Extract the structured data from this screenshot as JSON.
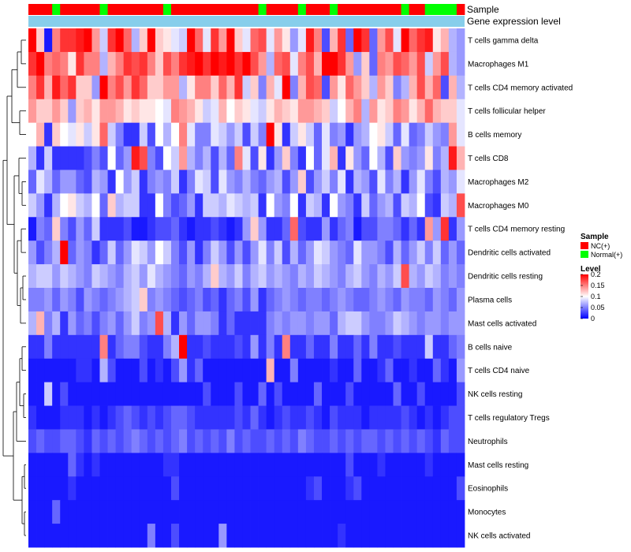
{
  "chart_data": {
    "type": "heatmap",
    "annotation_tracks": [
      "Sample",
      "Gene expression level"
    ],
    "rows": [
      "T cells gamma delta",
      "Macrophages M1",
      "T cells CD4 memory activated",
      "T cells follicular helper",
      "B cells memory",
      "T cells CD8",
      "Macrophages M2",
      "Macrophages M0",
      "T cells CD4 memory resting",
      "Dendritic cells activated",
      "Dendritic cells resting",
      "Plasma cells",
      "Mast cells activated",
      "B cells naive",
      "T cells CD4 naive",
      "NK cells resting",
      "T cells regulatory  Tregs",
      "Neutrophils",
      "Mast cells resting",
      "Eosinophils",
      "Monocytes",
      "NK cells activated"
    ],
    "sample_groups": [
      "NC",
      "NC",
      "NC",
      "Normal",
      "NC",
      "NC",
      "NC",
      "NC",
      "NC",
      "Normal",
      "NC",
      "NC",
      "NC",
      "NC",
      "NC",
      "NC",
      "NC",
      "Normal",
      "NC",
      "NC",
      "NC",
      "NC",
      "NC",
      "NC",
      "NC",
      "NC",
      "NC",
      "NC",
      "NC",
      "Normal",
      "NC",
      "NC",
      "NC",
      "NC",
      "Normal",
      "NC",
      "NC",
      "NC",
      "Normal",
      "NC",
      "NC",
      "NC",
      "NC",
      "NC",
      "NC",
      "NC",
      "NC",
      "Normal",
      "NC",
      "NC",
      "Normal",
      "Normal",
      "Normal",
      "Normal",
      "NC"
    ],
    "values": [
      [
        0.22,
        0.12,
        0.01,
        0.15,
        0.18,
        0.18,
        0.19,
        0.21,
        0.14,
        0.08,
        0.18,
        0.2,
        0.16,
        0.07,
        0.12,
        0.21,
        0.12,
        0.11,
        0.09,
        0.08,
        0.21,
        0.16,
        0.09,
        0.18,
        0.14,
        0.2,
        0.12,
        0.09,
        0.16,
        0.17,
        0.09,
        0.14,
        0.11,
        0.06,
        0.09,
        0.19,
        0.15,
        0.03,
        0.13,
        0.18,
        0.04,
        0.2,
        0.18,
        0.04,
        0.14,
        0.17,
        0.09,
        0.21,
        0.16,
        0.18,
        0.19,
        0.11,
        0.13,
        0.07,
        0.06
      ],
      [
        0.18,
        0.2,
        0.15,
        0.16,
        0.15,
        0.11,
        0.18,
        0.15,
        0.15,
        0.07,
        0.13,
        0.15,
        0.18,
        0.17,
        0.18,
        0.15,
        0.12,
        0.17,
        0.15,
        0.18,
        0.19,
        0.2,
        0.18,
        0.22,
        0.19,
        0.2,
        0.18,
        0.21,
        0.17,
        0.14,
        0.07,
        0.16,
        0.17,
        0.09,
        0.15,
        0.17,
        0.13,
        0.2,
        0.21,
        0.18,
        0.14,
        0.06,
        0.12,
        0.04,
        0.15,
        0.14,
        0.17,
        0.16,
        0.14,
        0.17,
        0.08,
        0.14,
        0.17,
        0.07,
        0.06
      ],
      [
        0.15,
        0.18,
        0.13,
        0.19,
        0.16,
        0.18,
        0.12,
        0.12,
        0.06,
        0.2,
        0.15,
        0.17,
        0.14,
        0.18,
        0.16,
        0.12,
        0.12,
        0.14,
        0.14,
        0.07,
        0.11,
        0.15,
        0.15,
        0.12,
        0.16,
        0.13,
        0.18,
        0.08,
        0.12,
        0.05,
        0.13,
        0.09,
        0.21,
        0.05,
        0.13,
        0.17,
        0.16,
        0.03,
        0.14,
        0.11,
        0.16,
        0.14,
        0.12,
        0.07,
        0.14,
        0.12,
        0.05,
        0.07,
        0.13,
        0.17,
        0.13,
        0.16,
        0.03,
        0.13,
        0.07
      ],
      [
        0.14,
        0.12,
        0.12,
        0.14,
        0.12,
        0.06,
        0.12,
        0.13,
        0.11,
        0.14,
        0.14,
        0.13,
        0.11,
        0.12,
        0.11,
        0.11,
        0.1,
        0.09,
        0.15,
        0.14,
        0.13,
        0.11,
        0.08,
        0.09,
        0.13,
        0.1,
        0.12,
        0.11,
        0.09,
        0.08,
        0.11,
        0.13,
        0.12,
        0.11,
        0.14,
        0.14,
        0.13,
        0.12,
        0.08,
        0.1,
        0.13,
        0.15,
        0.07,
        0.14,
        0.11,
        0.12,
        0.15,
        0.14,
        0.11,
        0.13,
        0.16,
        0.13,
        0.12,
        0.12,
        0.09
      ],
      [
        0.1,
        0.13,
        0.02,
        0.12,
        0.1,
        0.09,
        0.11,
        0.08,
        0.11,
        0.16,
        0.08,
        0.05,
        0.02,
        0.02,
        0.08,
        0.03,
        0.1,
        0.07,
        0.1,
        0.15,
        0.09,
        0.05,
        0.05,
        0.09,
        0.08,
        0.06,
        0.08,
        0.03,
        0.08,
        0.05,
        0.22,
        0.11,
        0.02,
        0.08,
        0.11,
        0.08,
        0.04,
        0.09,
        0.05,
        0.06,
        0.02,
        0.06,
        0.07,
        0.1,
        0.11,
        0.08,
        0.04,
        0.09,
        0.04,
        0.05,
        0.08,
        0.06,
        0.05,
        0.14,
        0.09
      ],
      [
        0.07,
        0.02,
        0.08,
        0.02,
        0.02,
        0.02,
        0.02,
        0.03,
        0.05,
        0.03,
        0.1,
        0.04,
        0.06,
        0.19,
        0.17,
        0.05,
        0.03,
        0.1,
        0.08,
        0.14,
        0.07,
        0.05,
        0.07,
        0.03,
        0.07,
        0.04,
        0.15,
        0.09,
        0.03,
        0.11,
        0.02,
        0.06,
        0.12,
        0.05,
        0.02,
        0.1,
        0.04,
        0.09,
        0.13,
        0.02,
        0.11,
        0.06,
        0.04,
        0.1,
        0.07,
        0.03,
        0.12,
        0.06,
        0.05,
        0.06,
        0.11,
        0.05,
        0.07,
        0.19,
        0.13
      ],
      [
        0.04,
        0.09,
        0.07,
        0.04,
        0.06,
        0.06,
        0.04,
        0.03,
        0.07,
        0.06,
        0.02,
        0.1,
        0.06,
        0.08,
        0.02,
        0.05,
        0.06,
        0.05,
        0.08,
        0.02,
        0.05,
        0.09,
        0.08,
        0.03,
        0.09,
        0.06,
        0.05,
        0.07,
        0.05,
        0.04,
        0.06,
        0.07,
        0.03,
        0.06,
        0.12,
        0.03,
        0.06,
        0.08,
        0.05,
        0.09,
        0.02,
        0.07,
        0.06,
        0.03,
        0.09,
        0.05,
        0.07,
        0.02,
        0.06,
        0.09,
        0.05,
        0.03,
        0.07,
        0.06,
        0.09
      ],
      [
        0.08,
        0.06,
        0.02,
        0.07,
        0.1,
        0.11,
        0.08,
        0.07,
        0.1,
        0.04,
        0.12,
        0.07,
        0.08,
        0.08,
        0.02,
        0.02,
        0.1,
        0.05,
        0.03,
        0.04,
        0.06,
        0.02,
        0.08,
        0.08,
        0.07,
        0.09,
        0.08,
        0.07,
        0.08,
        0.02,
        0.1,
        0.06,
        0.05,
        0.1,
        0.02,
        0.08,
        0.07,
        0.02,
        0.1,
        0.06,
        0.05,
        0.02,
        0.08,
        0.04,
        0.06,
        0.07,
        0.03,
        0.08,
        0.07,
        0.1,
        0.03,
        0.02,
        0.08,
        0.07,
        0.17
      ],
      [
        0.01,
        0.05,
        0.04,
        0.12,
        0.05,
        0.03,
        0.06,
        0.04,
        0.08,
        0.02,
        0.02,
        0.02,
        0.03,
        0.01,
        0.01,
        0.02,
        0.03,
        0.03,
        0.04,
        0.02,
        0.01,
        0.02,
        0.02,
        0.03,
        0.02,
        0.01,
        0.02,
        0.06,
        0.12,
        0.06,
        0.02,
        0.02,
        0.04,
        0.16,
        0.03,
        0.02,
        0.02,
        0.06,
        0.02,
        0.04,
        0.05,
        0.01,
        0.03,
        0.03,
        0.05,
        0.05,
        0.04,
        0.02,
        0.04,
        0.02,
        0.14,
        0.06,
        0.18,
        0.02,
        0.06
      ],
      [
        0.06,
        0.03,
        0.05,
        0.07,
        0.21,
        0.04,
        0.06,
        0.05,
        0.02,
        0.04,
        0.08,
        0.04,
        0.06,
        0.09,
        0.08,
        0.06,
        0.1,
        0.08,
        0.05,
        0.03,
        0.06,
        0.02,
        0.05,
        0.08,
        0.06,
        0.03,
        0.06,
        0.03,
        0.06,
        0.09,
        0.05,
        0.08,
        0.03,
        0.07,
        0.04,
        0.06,
        0.09,
        0.08,
        0.06,
        0.05,
        0.04,
        0.09,
        0.06,
        0.06,
        0.05,
        0.03,
        0.07,
        0.04,
        0.06,
        0.08,
        0.05,
        0.08,
        0.04,
        0.06,
        0.04
      ],
      [
        0.07,
        0.08,
        0.08,
        0.06,
        0.08,
        0.07,
        0.06,
        0.05,
        0.08,
        0.07,
        0.06,
        0.05,
        0.07,
        0.08,
        0.06,
        0.09,
        0.07,
        0.06,
        0.05,
        0.04,
        0.06,
        0.05,
        0.07,
        0.12,
        0.07,
        0.06,
        0.08,
        0.05,
        0.07,
        0.08,
        0.06,
        0.07,
        0.06,
        0.05,
        0.07,
        0.06,
        0.08,
        0.07,
        0.06,
        0.05,
        0.07,
        0.08,
        0.06,
        0.05,
        0.07,
        0.06,
        0.08,
        0.17,
        0.07,
        0.06,
        0.08,
        0.07,
        0.05,
        0.06,
        0.05
      ],
      [
        0.05,
        0.05,
        0.06,
        0.04,
        0.06,
        0.05,
        0.03,
        0.06,
        0.05,
        0.04,
        0.05,
        0.06,
        0.07,
        0.08,
        0.12,
        0.05,
        0.06,
        0.05,
        0.04,
        0.03,
        0.04,
        0.05,
        0.03,
        0.04,
        0.02,
        0.04,
        0.05,
        0.03,
        0.06,
        0.02,
        0.04,
        0.05,
        0.06,
        0.05,
        0.04,
        0.05,
        0.05,
        0.04,
        0.05,
        0.06,
        0.05,
        0.04,
        0.04,
        0.05,
        0.06,
        0.05,
        0.04,
        0.06,
        0.05,
        0.05,
        0.04,
        0.06,
        0.05,
        0.04,
        0.06
      ],
      [
        0.07,
        0.13,
        0.05,
        0.07,
        0.02,
        0.06,
        0.04,
        0.05,
        0.03,
        0.05,
        0.06,
        0.04,
        0.06,
        0.08,
        0.05,
        0.06,
        0.17,
        0.07,
        0.02,
        0.06,
        0.04,
        0.06,
        0.06,
        0.05,
        0.02,
        0.04,
        0.02,
        0.02,
        0.02,
        0.02,
        0.05,
        0.06,
        0.05,
        0.06,
        0.06,
        0.05,
        0.06,
        0.06,
        0.04,
        0.07,
        0.08,
        0.08,
        0.06,
        0.05,
        0.05,
        0.06,
        0.08,
        0.07,
        0.06,
        0.05,
        0.06,
        0.06,
        0.05,
        0.06,
        0.06
      ],
      [
        0.02,
        0.02,
        0.05,
        0.02,
        0.02,
        0.02,
        0.02,
        0.02,
        0.02,
        0.15,
        0.02,
        0.04,
        0.05,
        0.05,
        0.03,
        0.02,
        0.02,
        0.05,
        0.07,
        0.22,
        0.02,
        0.02,
        0.03,
        0.02,
        0.02,
        0.02,
        0.03,
        0.02,
        0.06,
        0.02,
        0.05,
        0.02,
        0.15,
        0.02,
        0.02,
        0.04,
        0.02,
        0.02,
        0.05,
        0.02,
        0.02,
        0.04,
        0.02,
        0.05,
        0.02,
        0.02,
        0.03,
        0.02,
        0.02,
        0.02,
        0.08,
        0.02,
        0.02,
        0.04,
        0.05
      ],
      [
        0.01,
        0.01,
        0.01,
        0.01,
        0.01,
        0.01,
        0.02,
        0.02,
        0.01,
        0.07,
        0.03,
        0.01,
        0.01,
        0.01,
        0.03,
        0.01,
        0.02,
        0.01,
        0.03,
        0.06,
        0.02,
        0.04,
        0.01,
        0.01,
        0.01,
        0.01,
        0.01,
        0.01,
        0.01,
        0.01,
        0.13,
        0.01,
        0.01,
        0.05,
        0.01,
        0.01,
        0.01,
        0.01,
        0.02,
        0.01,
        0.01,
        0.04,
        0.01,
        0.01,
        0.02,
        0.04,
        0.01,
        0.01,
        0.02,
        0.01,
        0.01,
        0.04,
        0.02,
        0.01,
        0.06
      ],
      [
        0.01,
        0.01,
        0.08,
        0.01,
        0.03,
        0.01,
        0.01,
        0.01,
        0.01,
        0.01,
        0.01,
        0.01,
        0.01,
        0.01,
        0.01,
        0.01,
        0.01,
        0.01,
        0.01,
        0.01,
        0.01,
        0.01,
        0.03,
        0.01,
        0.01,
        0.01,
        0.03,
        0.01,
        0.01,
        0.04,
        0.01,
        0.03,
        0.01,
        0.01,
        0.01,
        0.01,
        0.04,
        0.01,
        0.01,
        0.01,
        0.03,
        0.01,
        0.01,
        0.01,
        0.01,
        0.01,
        0.04,
        0.01,
        0.01,
        0.03,
        0.01,
        0.01,
        0.01,
        0.01,
        0.03
      ],
      [
        0.02,
        0.01,
        0.01,
        0.01,
        0.02,
        0.02,
        0.02,
        0.01,
        0.02,
        0.01,
        0.02,
        0.03,
        0.04,
        0.03,
        0.02,
        0.03,
        0.02,
        0.03,
        0.04,
        0.04,
        0.03,
        0.02,
        0.02,
        0.02,
        0.02,
        0.02,
        0.03,
        0.02,
        0.04,
        0.02,
        0.01,
        0.02,
        0.03,
        0.02,
        0.02,
        0.03,
        0.02,
        0.01,
        0.03,
        0.02,
        0.02,
        0.02,
        0.01,
        0.02,
        0.02,
        0.02,
        0.02,
        0.03,
        0.02,
        0.01,
        0.02,
        0.01,
        0.02,
        0.03,
        0.03
      ],
      [
        0.03,
        0.04,
        0.03,
        0.03,
        0.04,
        0.04,
        0.03,
        0.02,
        0.04,
        0.03,
        0.04,
        0.03,
        0.04,
        0.05,
        0.04,
        0.03,
        0.04,
        0.03,
        0.04,
        0.05,
        0.03,
        0.04,
        0.03,
        0.04,
        0.03,
        0.05,
        0.03,
        0.04,
        0.03,
        0.03,
        0.04,
        0.03,
        0.04,
        0.03,
        0.05,
        0.04,
        0.03,
        0.03,
        0.04,
        0.03,
        0.04,
        0.03,
        0.04,
        0.04,
        0.03,
        0.04,
        0.03,
        0.04,
        0.03,
        0.04,
        0.03,
        0.02,
        0.04,
        0.03,
        0.03
      ],
      [
        0.01,
        0.01,
        0.01,
        0.01,
        0.01,
        0.04,
        0.02,
        0.01,
        0.02,
        0.01,
        0.01,
        0.01,
        0.01,
        0.01,
        0.01,
        0.01,
        0.01,
        0.02,
        0.02,
        0.01,
        0.01,
        0.01,
        0.01,
        0.01,
        0.01,
        0.01,
        0.01,
        0.01,
        0.01,
        0.01,
        0.01,
        0.01,
        0.01,
        0.01,
        0.01,
        0.01,
        0.01,
        0.01,
        0.01,
        0.01,
        0.03,
        0.01,
        0.01,
        0.01,
        0.02,
        0.01,
        0.01,
        0.01,
        0.01,
        0.01,
        0.02,
        0.01,
        0.01,
        0.01,
        0.01
      ],
      [
        0.01,
        0.01,
        0.01,
        0.01,
        0.01,
        0.02,
        0.01,
        0.01,
        0.01,
        0.01,
        0.01,
        0.01,
        0.01,
        0.01,
        0.01,
        0.01,
        0.01,
        0.01,
        0.03,
        0.01,
        0.01,
        0.01,
        0.01,
        0.01,
        0.01,
        0.01,
        0.01,
        0.01,
        0.01,
        0.01,
        0.01,
        0.01,
        0.01,
        0.01,
        0.01,
        0.02,
        0.03,
        0.01,
        0.01,
        0.01,
        0.02,
        0.03,
        0.01,
        0.01,
        0.01,
        0.01,
        0.01,
        0.01,
        0.01,
        0.01,
        0.01,
        0.01,
        0.01,
        0.01,
        0.03
      ],
      [
        0.01,
        0.01,
        0.01,
        0.04,
        0.01,
        0.01,
        0.01,
        0.01,
        0.01,
        0.01,
        0.01,
        0.01,
        0.01,
        0.01,
        0.01,
        0.01,
        0.01,
        0.01,
        0.01,
        0.01,
        0.01,
        0.01,
        0.01,
        0.01,
        0.01,
        0.01,
        0.01,
        0.01,
        0.01,
        0.01,
        0.01,
        0.01,
        0.01,
        0.01,
        0.01,
        0.01,
        0.01,
        0.01,
        0.01,
        0.01,
        0.01,
        0.01,
        0.01,
        0.01,
        0.01,
        0.01,
        0.01,
        0.01,
        0.01,
        0.01,
        0.01,
        0.01,
        0.01,
        0.01,
        0.01
      ],
      [
        0.01,
        0.01,
        0.01,
        0.01,
        0.01,
        0.01,
        0.01,
        0.01,
        0.01,
        0.01,
        0.01,
        0.01,
        0.01,
        0.01,
        0.01,
        0.05,
        0.01,
        0.01,
        0.03,
        0.01,
        0.01,
        0.01,
        0.01,
        0.01,
        0.06,
        0.01,
        0.01,
        0.01,
        0.01,
        0.01,
        0.01,
        0.01,
        0.01,
        0.01,
        0.01,
        0.01,
        0.01,
        0.01,
        0.01,
        0.02,
        0.01,
        0.01,
        0.01,
        0.01,
        0.01,
        0.01,
        0.01,
        0.01,
        0.01,
        0.01,
        0.01,
        0.01,
        0.01,
        0.01,
        0.01
      ]
    ],
    "legend": {
      "sample": {
        "title": "Sample",
        "items": [
          {
            "label": "NC(+)",
            "color": "#ff0000"
          },
          {
            "label": "Normal(+)",
            "color": "#00ff00"
          }
        ]
      },
      "level": {
        "title": "Level",
        "ticks": [
          "0.2",
          "0.15",
          "0.1",
          "0.05",
          "0"
        ],
        "tick_values": [
          0.2,
          0.15,
          0.1,
          0.05,
          0
        ],
        "colors": {
          "low": "#0000ff",
          "mid": "#ffffff",
          "high": "#ff0000"
        },
        "range": [
          0,
          0.2
        ]
      }
    },
    "expression_track_color": "#87ceeb",
    "legend_position": "right"
  }
}
